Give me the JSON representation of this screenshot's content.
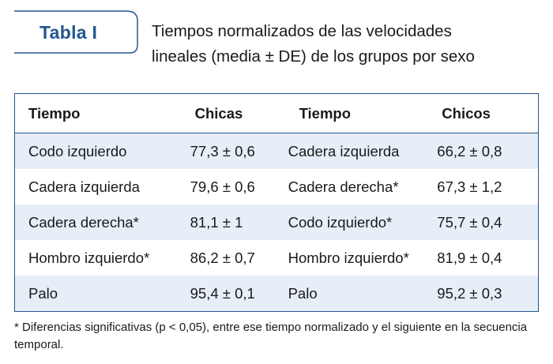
{
  "header": {
    "tab_label": "Tabla I",
    "caption_line1": "Tiempos normalizados de las velocidades",
    "caption_line2": "lineales (media ± DE) de los grupos por sexo"
  },
  "table": {
    "columns": [
      "Tiempo",
      "Chicas",
      "Tiempo",
      "Chicos"
    ],
    "rows": [
      [
        "Codo izquierdo",
        "77,3 ± 0,6",
        "Cadera izquierda",
        "66,2 ± 0,8"
      ],
      [
        "Cadera izquierda",
        "79,6 ± 0,6",
        "Cadera derecha*",
        "67,3 ± 1,2"
      ],
      [
        "Cadera derecha*",
        "81,1 ± 1",
        "Codo izquierdo*",
        "75,7 ± 0,4"
      ],
      [
        "Hombro izquierdo*",
        "86,2 ± 0,7",
        "Hombro izquierdo*",
        "81,9 ± 0,4"
      ],
      [
        "Palo",
        "95,4 ± 0,1",
        "Palo",
        "95,2 ± 0,3"
      ]
    ]
  },
  "footnote": "* Diferencias significativas (p < 0,05), entre ese tiempo normalizado y el siguiente en la secuencia temporal.",
  "colors": {
    "accent": "#24578f",
    "row_shade": "#e6eef8"
  }
}
